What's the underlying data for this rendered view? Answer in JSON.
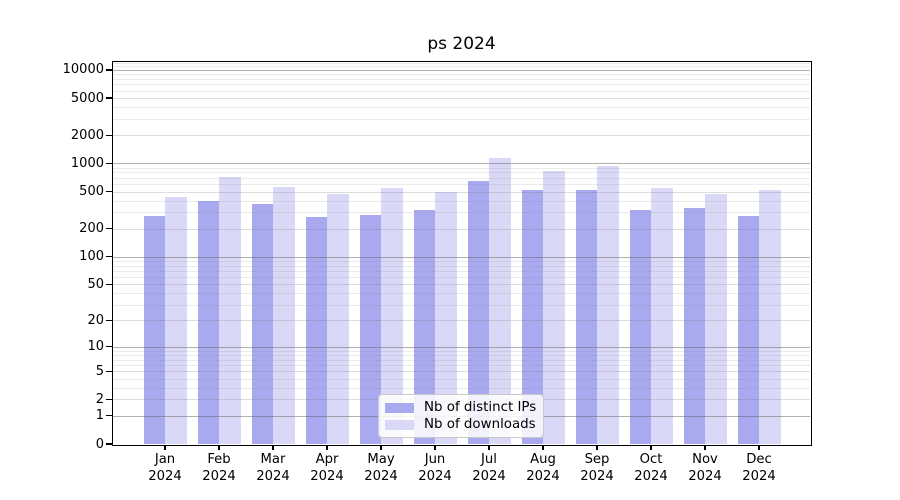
{
  "chart_data": {
    "type": "bar",
    "title": "ps 2024",
    "categories": [
      "Jan 2024",
      "Feb 2024",
      "Mar 2024",
      "Apr 2024",
      "May 2024",
      "Jun 2024",
      "Jul 2024",
      "Aug 2024",
      "Sep 2024",
      "Oct 2024",
      "Nov 2024",
      "Dec 2024"
    ],
    "series": [
      {
        "name": "Nb of distinct IPs",
        "color": "#a9a9f0",
        "values": [
          275,
          400,
          365,
          270,
          280,
          315,
          655,
          515,
          520,
          315,
          330,
          275
        ]
      },
      {
        "name": "Nb of downloads",
        "color": "#d9d9f7",
        "values": [
          440,
          720,
          565,
          465,
          540,
          500,
          1130,
          830,
          950,
          550,
          470,
          520
        ]
      }
    ],
    "yscale": "log10(1+x)",
    "ylim": [
      0,
      12150
    ],
    "yticks": {
      "major": [
        0,
        1,
        2,
        5,
        10,
        20,
        50,
        100,
        200,
        500,
        1000,
        2000,
        5000,
        10000
      ],
      "decade": [
        1,
        10,
        100,
        1000,
        10000
      ],
      "minor": [
        3,
        4,
        6,
        7,
        8,
        9,
        30,
        40,
        60,
        70,
        80,
        90,
        300,
        400,
        600,
        700,
        800,
        900,
        3000,
        4000,
        6000,
        7000,
        8000,
        9000,
        11000,
        12000
      ]
    },
    "grid": true,
    "legend_position": "bottom-center"
  }
}
